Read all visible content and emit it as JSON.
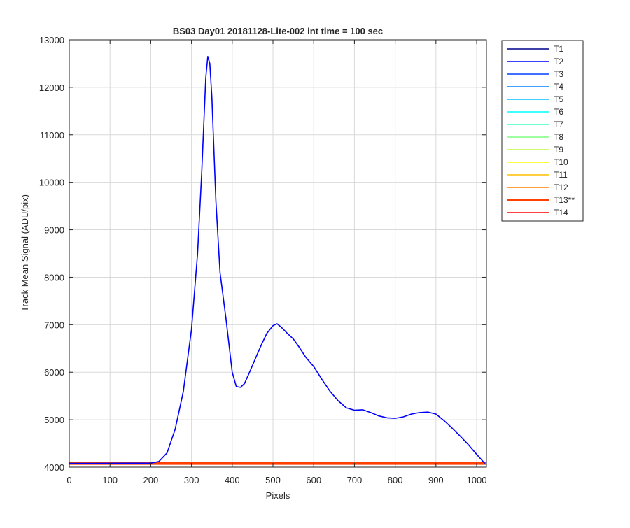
{
  "chart_data": {
    "type": "line",
    "title": "BS03 Day01 20181128-Lite-002 int time = 100 sec",
    "xlabel": "Pixels",
    "ylabel": "Track Mean Signal (ADU/pix)",
    "xlim": [
      0,
      1024
    ],
    "ylim": [
      4000,
      13000
    ],
    "xticks": [
      0,
      100,
      200,
      300,
      400,
      500,
      600,
      700,
      800,
      900,
      1000
    ],
    "yticks": [
      4000,
      5000,
      6000,
      7000,
      8000,
      9000,
      10000,
      11000,
      12000,
      13000
    ],
    "grid": true,
    "legend_placement": "outside-right-top",
    "series": [
      {
        "name": "T1",
        "color": "#00008F",
        "baseline": 4085
      },
      {
        "name": "T2",
        "color": "#0000FF",
        "baseline": 4080,
        "x": [
          0,
          200,
          220,
          240,
          260,
          280,
          300,
          315,
          325,
          335,
          340,
          345,
          350,
          360,
          370,
          385,
          400,
          410,
          420,
          430,
          440,
          455,
          470,
          485,
          500,
          510,
          520,
          535,
          550,
          565,
          580,
          600,
          620,
          640,
          660,
          680,
          700,
          720,
          740,
          760,
          780,
          800,
          820,
          840,
          860,
          880,
          900,
          920,
          940,
          960,
          980,
          1000,
          1020
        ],
        "y": [
          4080,
          4085,
          4120,
          4300,
          4800,
          5600,
          6900,
          8500,
          10200,
          12200,
          12650,
          12500,
          11800,
          9600,
          8100,
          7100,
          6000,
          5700,
          5680,
          5760,
          5950,
          6250,
          6550,
          6820,
          6980,
          7020,
          6950,
          6820,
          6700,
          6520,
          6320,
          6120,
          5850,
          5600,
          5400,
          5250,
          5200,
          5210,
          5150,
          5080,
          5040,
          5030,
          5060,
          5120,
          5150,
          5160,
          5120,
          4980,
          4820,
          4650,
          4470,
          4270,
          4080
        ]
      },
      {
        "name": "T3",
        "color": "#0040FF",
        "baseline": 4080
      },
      {
        "name": "T4",
        "color": "#0080FF",
        "baseline": 4080
      },
      {
        "name": "T5",
        "color": "#00BFFF",
        "baseline": 4080
      },
      {
        "name": "T6",
        "color": "#00FFFF",
        "baseline": 4080
      },
      {
        "name": "T7",
        "color": "#40FFBF",
        "baseline": 4080
      },
      {
        "name": "T8",
        "color": "#80FF80",
        "baseline": 4080
      },
      {
        "name": "T9",
        "color": "#BFFF40",
        "baseline": 4080
      },
      {
        "name": "T10",
        "color": "#FFFF00",
        "baseline": 4080
      },
      {
        "name": "T11",
        "color": "#FFBF00",
        "baseline": 4080
      },
      {
        "name": "T12",
        "color": "#FF8000",
        "baseline": 4080
      },
      {
        "name": "T13**",
        "color": "#FF4000",
        "baseline": 4080,
        "emphasized": true
      },
      {
        "name": "T14",
        "color": "#FF0000",
        "baseline": 4082
      }
    ]
  }
}
